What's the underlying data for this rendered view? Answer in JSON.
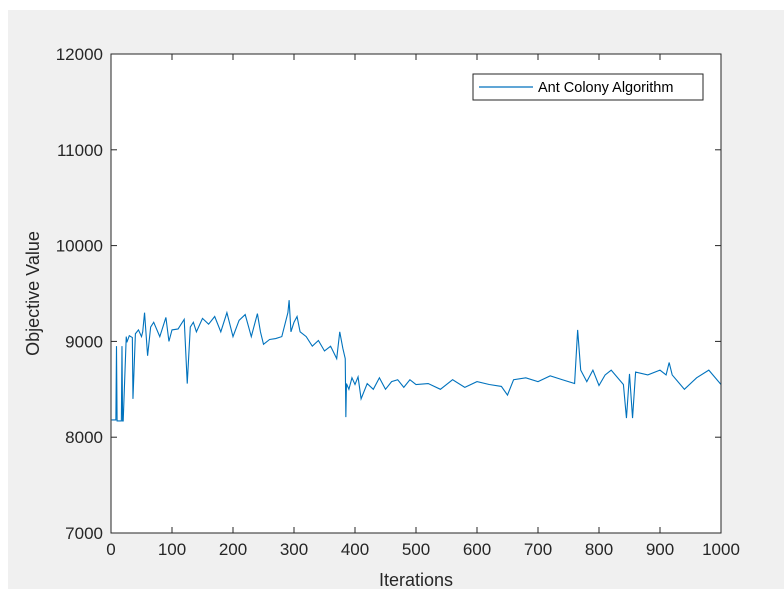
{
  "chart_data": {
    "type": "line",
    "xlabel": "Iterations",
    "ylabel": "Objective Value",
    "xlim": [
      0,
      1000
    ],
    "ylim": [
      7000,
      12000
    ],
    "xticks": [
      0,
      100,
      200,
      300,
      400,
      500,
      600,
      700,
      800,
      900,
      1000
    ],
    "yticks": [
      7000,
      8000,
      9000,
      10000,
      11000,
      12000
    ],
    "legend": {
      "position": "top-right"
    },
    "grid": false,
    "colors": {
      "line": "#0072bd",
      "axes": "#262626",
      "figure_bg": "#f0f0f0",
      "plot_bg": "#ffffff"
    },
    "series": [
      {
        "name": "Ant Colony Algorithm",
        "x": [
          1,
          8,
          9,
          10,
          17,
          18,
          19,
          20,
          25,
          26,
          30,
          35,
          36,
          40,
          45,
          50,
          52,
          55,
          60,
          65,
          70,
          80,
          90,
          95,
          100,
          110,
          120,
          125,
          130,
          135,
          140,
          150,
          160,
          170,
          180,
          190,
          200,
          210,
          220,
          230,
          240,
          245,
          250,
          260,
          270,
          280,
          290,
          292,
          295,
          300,
          305,
          310,
          320,
          330,
          340,
          350,
          360,
          370,
          375,
          380,
          384,
          385,
          386,
          390,
          395,
          400,
          405,
          410,
          420,
          430,
          440,
          450,
          460,
          470,
          480,
          490,
          500,
          520,
          540,
          560,
          580,
          600,
          620,
          640,
          650,
          660,
          680,
          700,
          720,
          740,
          760,
          765,
          770,
          780,
          790,
          800,
          810,
          820,
          840,
          845,
          850,
          855,
          860,
          880,
          900,
          910,
          915,
          920,
          940,
          960,
          980,
          1000
        ],
        "values": [
          8180,
          8180,
          8950,
          8170,
          8170,
          8950,
          8170,
          8170,
          9050,
          8990,
          9060,
          9040,
          8400,
          9080,
          9120,
          9050,
          9100,
          9300,
          8850,
          9150,
          9200,
          9050,
          9250,
          9000,
          9120,
          9130,
          9230,
          8560,
          9150,
          9200,
          9100,
          9240,
          9180,
          9260,
          9100,
          9300,
          9050,
          9220,
          9280,
          9050,
          9290,
          9100,
          8970,
          9020,
          9030,
          9050,
          9300,
          9430,
          9100,
          9200,
          9260,
          9100,
          9050,
          8950,
          9010,
          8900,
          8950,
          8820,
          9100,
          8930,
          8820,
          8210,
          8560,
          8500,
          8620,
          8550,
          8630,
          8400,
          8560,
          8500,
          8620,
          8500,
          8580,
          8600,
          8520,
          8600,
          8550,
          8560,
          8500,
          8600,
          8520,
          8580,
          8550,
          8530,
          8440,
          8600,
          8620,
          8580,
          8640,
          8600,
          8560,
          9120,
          8700,
          8580,
          8700,
          8540,
          8650,
          8700,
          8550,
          8200,
          8660,
          8200,
          8680,
          8650,
          8700,
          8650,
          8780,
          8650,
          8500,
          8620,
          8700,
          8550
        ]
      }
    ]
  }
}
